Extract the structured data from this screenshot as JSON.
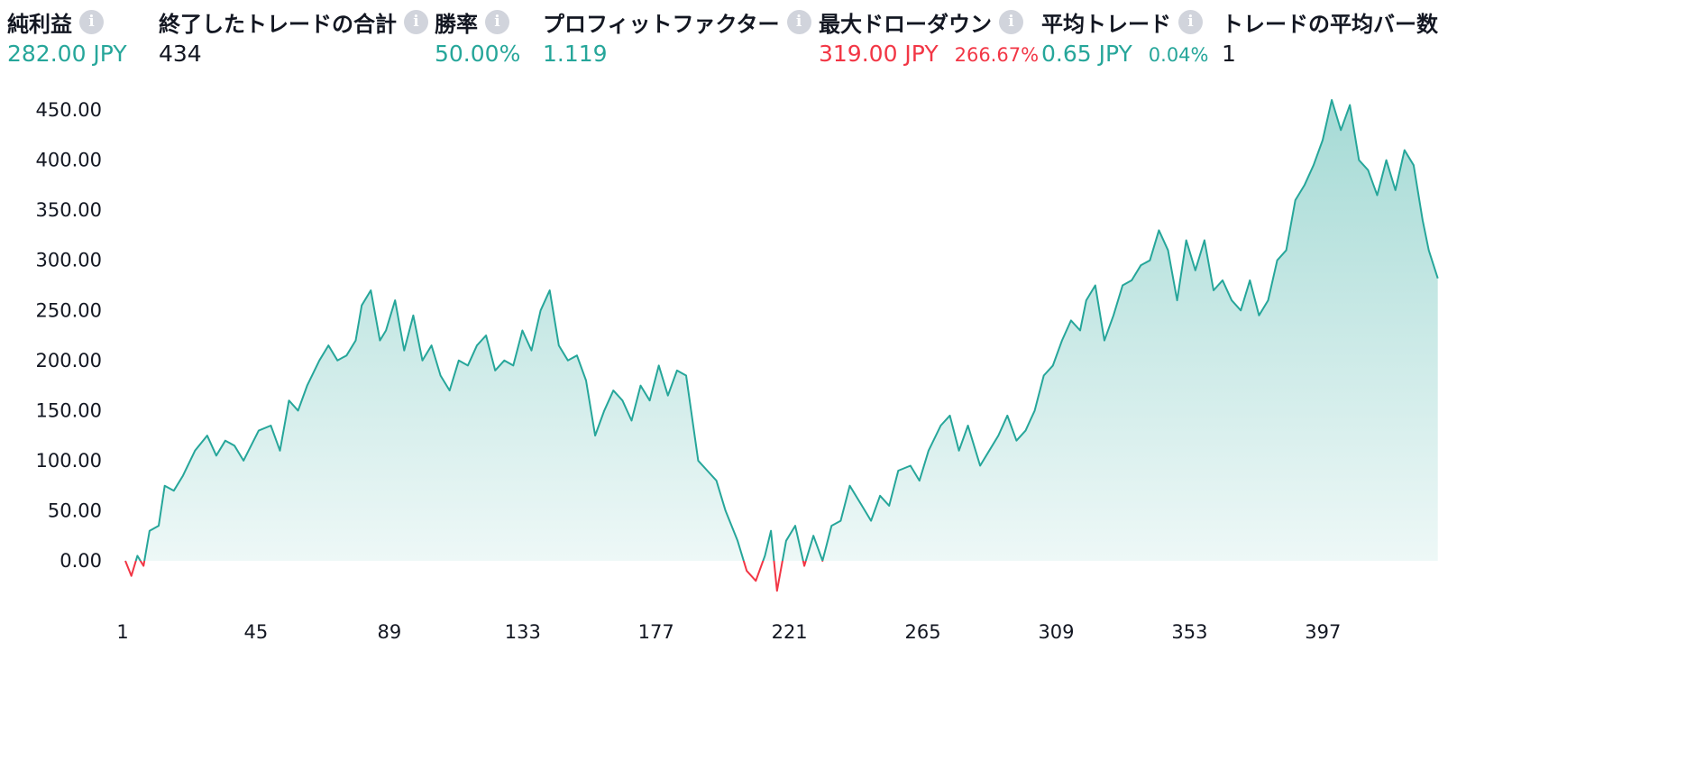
{
  "stats": [
    {
      "label": "純利益",
      "value": "282.00 JPY",
      "sub": "",
      "value_color": "#26a69a"
    },
    {
      "label": "終了したトレードの合計",
      "value": "434",
      "sub": "",
      "value_color": "#131722"
    },
    {
      "label": "勝率",
      "value": "50.00%",
      "sub": "",
      "value_color": "#26a69a"
    },
    {
      "label": "プロフィットファクター",
      "value": "1.119",
      "sub": "",
      "value_color": "#26a69a"
    },
    {
      "label": "最大ドローダウン",
      "value": "319.00 JPY",
      "sub": "266.67%",
      "value_color": "#f23645"
    },
    {
      "label": "平均トレード",
      "value": "0.65 JPY",
      "sub": "0.04%",
      "value_color": "#26a69a"
    },
    {
      "label": "トレードの平均バー数",
      "value": "1",
      "sub": "",
      "value_color": "#131722"
    }
  ],
  "colors": {
    "positive": "#26a69a",
    "negative": "#f23645",
    "text": "#131722",
    "info_icon": "#d1d4dc"
  },
  "chart_data": {
    "type": "area",
    "title": "",
    "xlabel": "",
    "ylabel": "",
    "grid": false,
    "xlim": [
      1,
      434
    ],
    "ylim": [
      -40,
      470
    ],
    "x_ticks": [
      1,
      45,
      89,
      133,
      177,
      221,
      265,
      309,
      353,
      397
    ],
    "y_ticks": [
      "0.00",
      "50.00",
      "100.00",
      "150.00",
      "200.00",
      "250.00",
      "300.00",
      "350.00",
      "400.00",
      "450.00"
    ],
    "series": [
      {
        "color_above_zero": "#26a69a",
        "color_below_zero": "#f23645",
        "points": [
          [
            1,
            0
          ],
          [
            3,
            -15
          ],
          [
            5,
            5
          ],
          [
            7,
            -5
          ],
          [
            9,
            30
          ],
          [
            12,
            35
          ],
          [
            14,
            75
          ],
          [
            17,
            70
          ],
          [
            20,
            85
          ],
          [
            24,
            110
          ],
          [
            28,
            125
          ],
          [
            31,
            105
          ],
          [
            34,
            120
          ],
          [
            37,
            115
          ],
          [
            40,
            100
          ],
          [
            45,
            130
          ],
          [
            49,
            135
          ],
          [
            52,
            110
          ],
          [
            55,
            160
          ],
          [
            58,
            150
          ],
          [
            61,
            175
          ],
          [
            65,
            200
          ],
          [
            68,
            215
          ],
          [
            71,
            200
          ],
          [
            74,
            205
          ],
          [
            77,
            220
          ],
          [
            79,
            255
          ],
          [
            82,
            270
          ],
          [
            85,
            220
          ],
          [
            87,
            230
          ],
          [
            90,
            260
          ],
          [
            93,
            210
          ],
          [
            96,
            245
          ],
          [
            99,
            200
          ],
          [
            102,
            215
          ],
          [
            105,
            185
          ],
          [
            108,
            170
          ],
          [
            111,
            200
          ],
          [
            114,
            195
          ],
          [
            117,
            215
          ],
          [
            120,
            225
          ],
          [
            123,
            190
          ],
          [
            126,
            200
          ],
          [
            129,
            195
          ],
          [
            132,
            230
          ],
          [
            135,
            210
          ],
          [
            138,
            250
          ],
          [
            141,
            270
          ],
          [
            144,
            215
          ],
          [
            147,
            200
          ],
          [
            150,
            205
          ],
          [
            153,
            180
          ],
          [
            156,
            125
          ],
          [
            159,
            150
          ],
          [
            162,
            170
          ],
          [
            165,
            160
          ],
          [
            168,
            140
          ],
          [
            171,
            175
          ],
          [
            174,
            160
          ],
          [
            177,
            195
          ],
          [
            180,
            165
          ],
          [
            183,
            190
          ],
          [
            186,
            185
          ],
          [
            190,
            100
          ],
          [
            193,
            90
          ],
          [
            196,
            80
          ],
          [
            199,
            50
          ],
          [
            203,
            20
          ],
          [
            206,
            -10
          ],
          [
            209,
            -20
          ],
          [
            212,
            5
          ],
          [
            214,
            30
          ],
          [
            216,
            -30
          ],
          [
            219,
            20
          ],
          [
            222,
            35
          ],
          [
            225,
            -5
          ],
          [
            228,
            25
          ],
          [
            231,
            0
          ],
          [
            234,
            35
          ],
          [
            237,
            40
          ],
          [
            240,
            75
          ],
          [
            244,
            55
          ],
          [
            247,
            40
          ],
          [
            250,
            65
          ],
          [
            253,
            55
          ],
          [
            256,
            90
          ],
          [
            260,
            95
          ],
          [
            263,
            80
          ],
          [
            266,
            110
          ],
          [
            270,
            135
          ],
          [
            273,
            145
          ],
          [
            276,
            110
          ],
          [
            279,
            135
          ],
          [
            283,
            95
          ],
          [
            286,
            110
          ],
          [
            289,
            125
          ],
          [
            292,
            145
          ],
          [
            295,
            120
          ],
          [
            298,
            130
          ],
          [
            301,
            150
          ],
          [
            304,
            185
          ],
          [
            307,
            195
          ],
          [
            310,
            220
          ],
          [
            313,
            240
          ],
          [
            316,
            230
          ],
          [
            318,
            260
          ],
          [
            321,
            275
          ],
          [
            324,
            220
          ],
          [
            327,
            245
          ],
          [
            330,
            275
          ],
          [
            333,
            280
          ],
          [
            336,
            295
          ],
          [
            339,
            300
          ],
          [
            342,
            330
          ],
          [
            345,
            310
          ],
          [
            348,
            260
          ],
          [
            351,
            320
          ],
          [
            354,
            290
          ],
          [
            357,
            320
          ],
          [
            360,
            270
          ],
          [
            363,
            280
          ],
          [
            366,
            260
          ],
          [
            369,
            250
          ],
          [
            372,
            280
          ],
          [
            375,
            245
          ],
          [
            378,
            260
          ],
          [
            381,
            300
          ],
          [
            384,
            310
          ],
          [
            387,
            360
          ],
          [
            390,
            375
          ],
          [
            393,
            395
          ],
          [
            396,
            420
          ],
          [
            399,
            460
          ],
          [
            402,
            430
          ],
          [
            405,
            455
          ],
          [
            408,
            400
          ],
          [
            411,
            390
          ],
          [
            414,
            365
          ],
          [
            417,
            400
          ],
          [
            420,
            370
          ],
          [
            423,
            410
          ],
          [
            426,
            395
          ],
          [
            429,
            340
          ],
          [
            431,
            310
          ],
          [
            434,
            282
          ]
        ]
      }
    ]
  }
}
